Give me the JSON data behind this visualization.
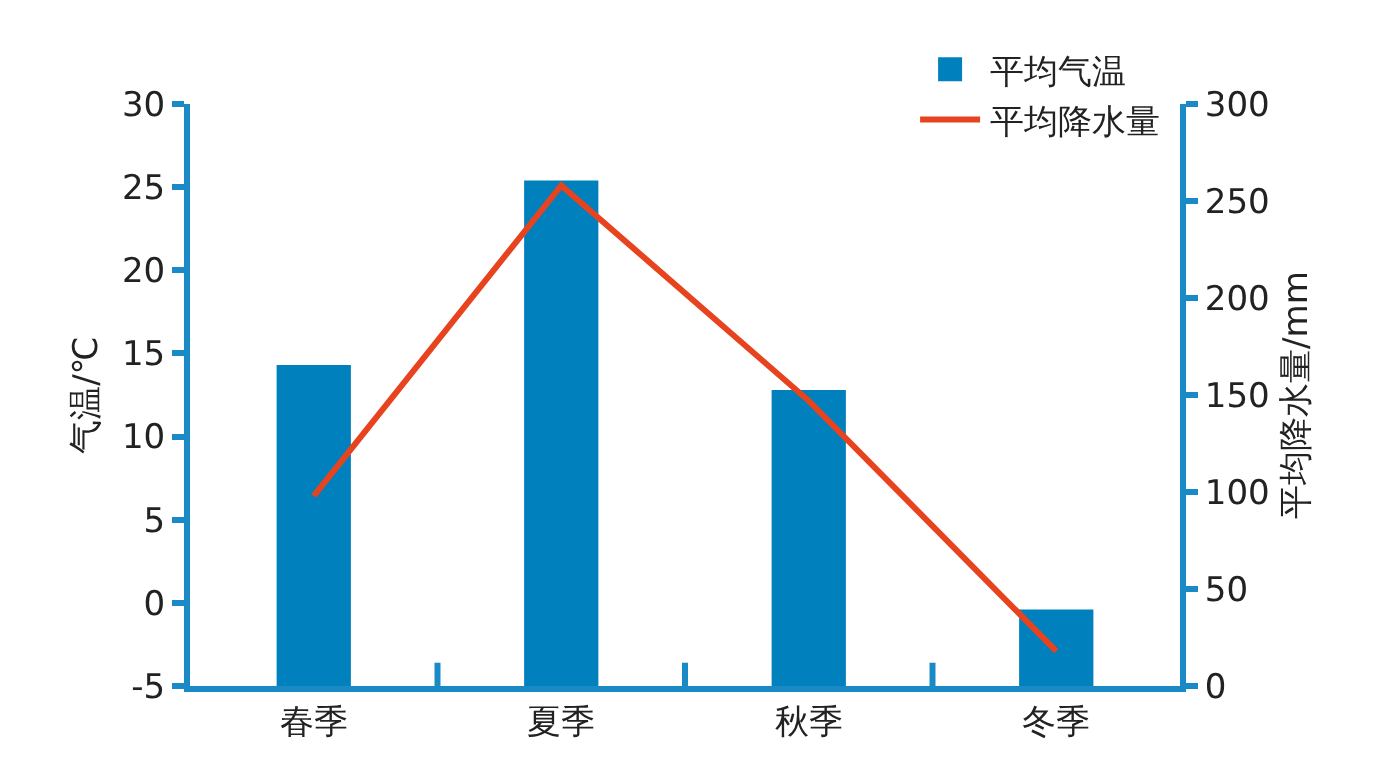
{
  "chart_data": {
    "type": "bar",
    "ylabel": "气温/℃",
    "y2label": "平均降水量/mm",
    "categories": [
      "春季",
      "夏季",
      "秋季",
      "冬季"
    ],
    "series": [
      {
        "name": "平均气温",
        "color": "#0080bd",
        "base": [
          -5,
          -5,
          -5,
          -5
        ],
        "values": [
          19.3,
          30.4,
          17.8,
          4.6
        ]
      },
      {
        "name": "平均降水量",
        "type": "line",
        "color": "#e8431f",
        "axis": "y2",
        "values": [
          98,
          258,
          147,
          18
        ]
      }
    ],
    "ylim": [
      -5,
      30
    ],
    "yticks": [
      -5,
      0,
      5,
      10,
      15,
      20,
      25,
      30
    ],
    "y2lim": [
      0,
      300
    ],
    "y2ticks": [
      0,
      50,
      100,
      150,
      200,
      250,
      300
    ],
    "grid": false,
    "legend": "top right",
    "marker": "none",
    "line_style": "solid"
  }
}
